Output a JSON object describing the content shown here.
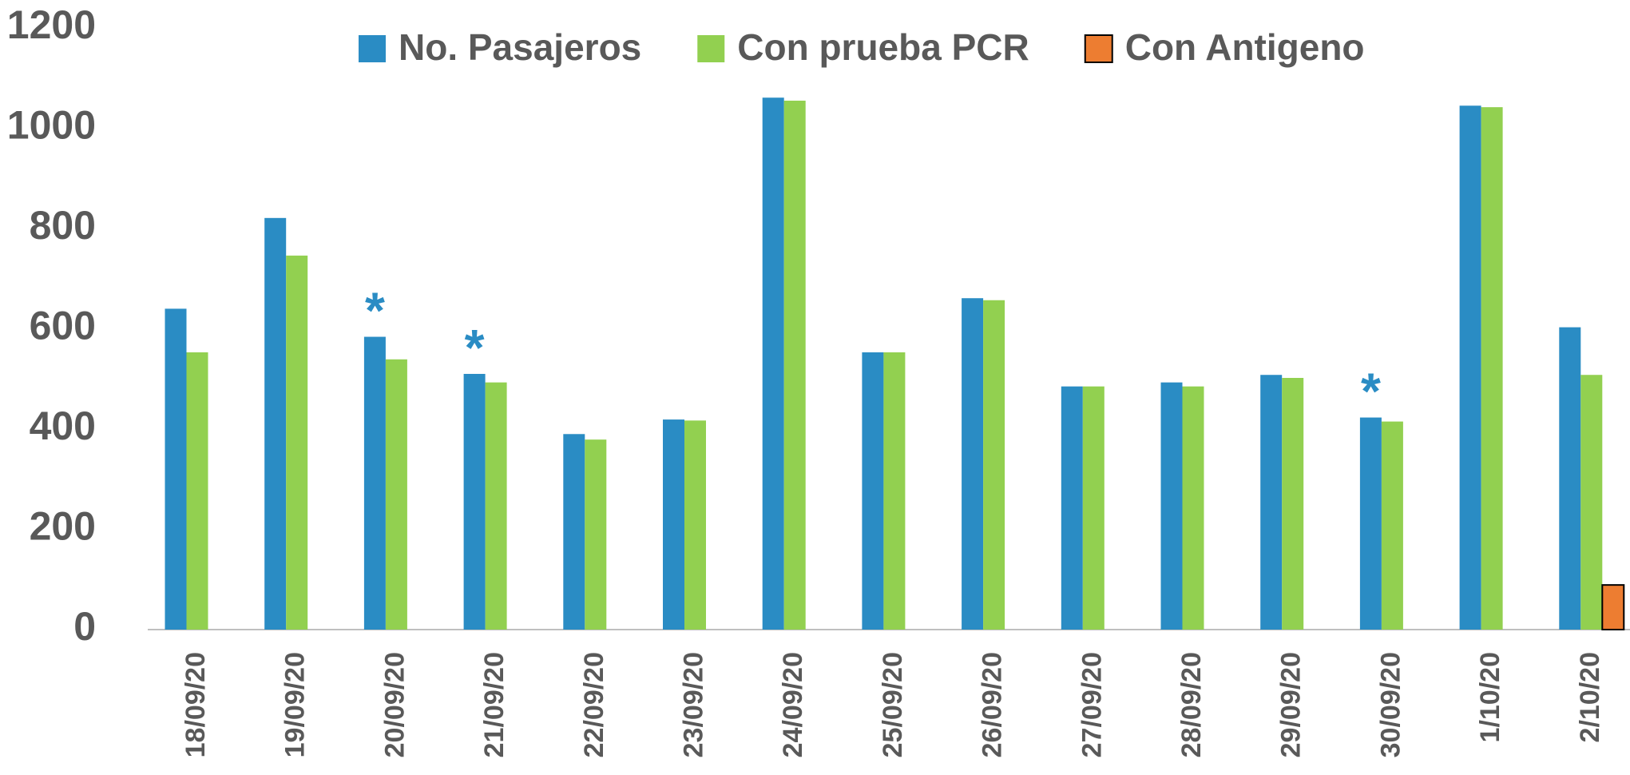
{
  "chart_data": {
    "type": "bar",
    "categories": [
      "18/09/20",
      "19/09/20",
      "20/09/20",
      "21/09/20",
      "22/09/20",
      "23/09/20",
      "24/09/20",
      "25/09/20",
      "26/09/20",
      "27/09/20",
      "28/09/20",
      "29/09/20",
      "30/09/20",
      "1/10/20",
      "2/10/20"
    ],
    "series": [
      {
        "name": "No. Pasajeros",
        "color": "#2a8cc4",
        "values": [
          640,
          821,
          584,
          510,
          390,
          419,
          1061,
          553,
          661,
          485,
          493,
          508,
          423,
          1045,
          603
        ]
      },
      {
        "name": "Con prueba PCR",
        "color": "#92d050",
        "values": [
          553,
          746,
          539,
          493,
          379,
          417,
          1055,
          553,
          657,
          485,
          485,
          502,
          415,
          1042,
          508
        ]
      },
      {
        "name": "Con Antigeno",
        "color": "#ed7d31",
        "values": [
          null,
          null,
          null,
          null,
          null,
          null,
          null,
          null,
          null,
          null,
          null,
          null,
          null,
          null,
          89
        ]
      }
    ],
    "annotations": [
      {
        "text": "*",
        "category": "20/09/20"
      },
      {
        "text": "*",
        "category": "21/09/20"
      },
      {
        "text": "*",
        "category": "30/09/20"
      }
    ],
    "ylim": [
      0,
      1200
    ],
    "yticks": [
      0,
      200,
      400,
      600,
      800,
      1000,
      1200
    ],
    "legend": "top"
  }
}
